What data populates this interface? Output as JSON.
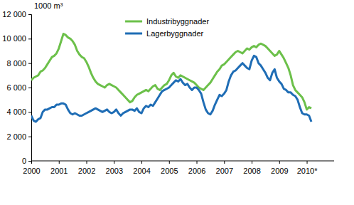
{
  "chart_data": {
    "type": "line",
    "ylabel": "1000 m³",
    "categories": [
      "2000",
      null,
      null,
      null,
      null,
      null,
      null,
      null,
      null,
      null,
      null,
      null,
      "2001",
      null,
      null,
      null,
      null,
      null,
      null,
      null,
      null,
      null,
      null,
      null,
      "2002",
      null,
      null,
      null,
      null,
      null,
      null,
      null,
      null,
      null,
      null,
      null,
      "2003",
      null,
      null,
      null,
      null,
      null,
      null,
      null,
      null,
      null,
      null,
      null,
      "2004",
      null,
      null,
      null,
      null,
      null,
      null,
      null,
      null,
      null,
      null,
      null,
      "2005",
      null,
      null,
      null,
      null,
      null,
      null,
      null,
      null,
      null,
      null,
      null,
      "2006",
      null,
      null,
      null,
      null,
      null,
      null,
      null,
      null,
      null,
      null,
      null,
      "2007",
      null,
      null,
      null,
      null,
      null,
      null,
      null,
      null,
      null,
      null,
      null,
      "2008",
      null,
      null,
      null,
      null,
      null,
      null,
      null,
      null,
      null,
      null,
      null,
      "2009",
      null,
      null,
      null,
      null,
      null,
      null,
      null,
      null,
      null,
      null,
      null,
      "2010*",
      null,
      null
    ],
    "series": [
      {
        "name": "Industribyggnader",
        "color": "#6cc04a",
        "values": [
          6600,
          6800,
          6900,
          7000,
          7300,
          7400,
          7600,
          7900,
          8200,
          8500,
          8600,
          8800,
          9200,
          9800,
          10400,
          10300,
          10100,
          10000,
          9800,
          9500,
          9000,
          8700,
          8500,
          8400,
          8100,
          7700,
          7200,
          6800,
          6500,
          6300,
          6200,
          6100,
          6000,
          6200,
          6300,
          6200,
          6100,
          6000,
          5800,
          5600,
          5400,
          5200,
          5000,
          4800,
          4900,
          5200,
          5400,
          5500,
          5600,
          5700,
          5800,
          5700,
          5900,
          6100,
          6200,
          5900,
          5800,
          6000,
          6200,
          6300,
          6600,
          7000,
          7200,
          6900,
          6800,
          7000,
          6900,
          6800,
          6700,
          6600,
          6500,
          6400,
          6200,
          6000,
          5900,
          5800,
          6000,
          6200,
          6400,
          6700,
          7000,
          7300,
          7500,
          7800,
          7900,
          8100,
          8300,
          8500,
          8700,
          8900,
          9000,
          8900,
          8800,
          9000,
          9200,
          9100,
          9300,
          9400,
          9300,
          9500,
          9600,
          9500,
          9400,
          9200,
          9000,
          8800,
          8600,
          8700,
          9000,
          8700,
          8400,
          8000,
          7600,
          7000,
          6200,
          5800,
          5600,
          5400,
          5200,
          4800,
          4200,
          4400,
          4300
        ]
      },
      {
        "name": "Lagerbyggnader",
        "color": "#1f6db5",
        "values": [
          3700,
          3300,
          3200,
          3400,
          3500,
          4000,
          4200,
          4200,
          4300,
          4400,
          4400,
          4600,
          4600,
          4700,
          4700,
          4600,
          4200,
          3900,
          3800,
          3900,
          3800,
          3700,
          3700,
          3800,
          3900,
          4000,
          4100,
          4200,
          4300,
          4200,
          4100,
          4000,
          4100,
          4200,
          4000,
          3900,
          4000,
          4200,
          3900,
          3700,
          3900,
          4000,
          4100,
          4200,
          4200,
          4100,
          4300,
          4000,
          3900,
          4300,
          4500,
          4400,
          4600,
          4500,
          4800,
          5100,
          5400,
          5700,
          5800,
          5900,
          6000,
          6200,
          6400,
          6600,
          6500,
          6700,
          6400,
          6200,
          6300,
          6000,
          5800,
          6000,
          6000,
          5800,
          5500,
          4800,
          4200,
          3900,
          3800,
          4100,
          4600,
          5000,
          5400,
          5300,
          5500,
          5800,
          6500,
          7000,
          7300,
          7400,
          7600,
          7800,
          8000,
          7800,
          7600,
          7500,
          8200,
          8600,
          8500,
          8000,
          7800,
          7500,
          7200,
          6800,
          6600,
          7200,
          7500,
          6800,
          6500,
          6300,
          5900,
          5800,
          5600,
          5600,
          5400,
          5300,
          5000,
          4400,
          3900,
          3800,
          3800,
          3700,
          3200
        ]
      }
    ],
    "ylim": [
      0,
      12000
    ],
    "yticks": [
      {
        "value": 0,
        "label": "0"
      },
      {
        "value": 2000,
        "label": "2 000"
      },
      {
        "value": 4000,
        "label": "4 000"
      },
      {
        "value": 6000,
        "label": "6 000"
      },
      {
        "value": 8000,
        "label": "8 000"
      },
      {
        "value": 10000,
        "label": "10 000"
      },
      {
        "value": 12000,
        "label": "12 000"
      }
    ],
    "grid": false,
    "legend": "upper-center"
  }
}
